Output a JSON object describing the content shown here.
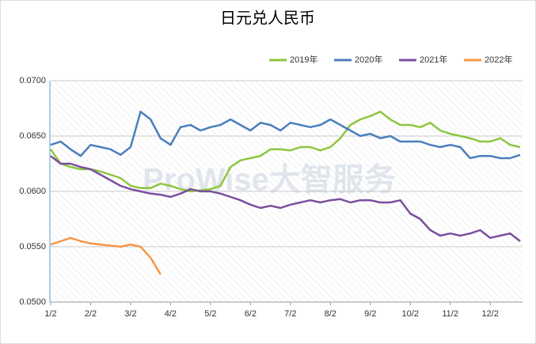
{
  "chart_data": {
    "type": "line",
    "title": "日元兑人民币",
    "watermark": "ProWise大智服务",
    "categories": [
      "1/2",
      null,
      null,
      null,
      "2/2",
      null,
      null,
      null,
      "3/2",
      null,
      null,
      null,
      "4/2",
      null,
      null,
      null,
      "5/2",
      null,
      null,
      null,
      "6/2",
      null,
      null,
      null,
      "7/2",
      null,
      null,
      null,
      "8/2",
      null,
      null,
      null,
      "9/2",
      null,
      null,
      null,
      "10/2",
      null,
      null,
      null,
      "11/2",
      null,
      null,
      null,
      "12/2",
      null,
      null,
      null
    ],
    "series": [
      {
        "name": "2019年",
        "color": "#8dc63f",
        "values": [
          0.0638,
          0.0625,
          0.0622,
          0.062,
          0.062,
          0.0618,
          0.0615,
          0.0612,
          0.0605,
          0.0603,
          0.0603,
          0.0607,
          0.0605,
          0.0602,
          0.06,
          0.0601,
          0.0602,
          0.0605,
          0.0622,
          0.0628,
          0.063,
          0.0632,
          0.0638,
          0.0638,
          0.0637,
          0.064,
          0.064,
          0.0637,
          0.064,
          0.0648,
          0.066,
          0.0665,
          0.0668,
          0.0672,
          0.0665,
          0.066,
          0.066,
          0.0658,
          0.0662,
          0.0655,
          0.0652,
          0.065,
          0.0648,
          0.0645,
          0.0645,
          0.0648,
          0.0642,
          0.064
        ]
      },
      {
        "name": "2020年",
        "color": "#4a7ebb",
        "values": [
          0.0642,
          0.0645,
          0.0638,
          0.0632,
          0.0642,
          0.064,
          0.0638,
          0.0633,
          0.064,
          0.0672,
          0.0665,
          0.0648,
          0.0642,
          0.0658,
          0.066,
          0.0655,
          0.0658,
          0.066,
          0.0665,
          0.066,
          0.0655,
          0.0662,
          0.066,
          0.0655,
          0.0662,
          0.066,
          0.0658,
          0.066,
          0.0665,
          0.066,
          0.0655,
          0.065,
          0.0652,
          0.0648,
          0.065,
          0.0645,
          0.0645,
          0.0645,
          0.0642,
          0.064,
          0.0642,
          0.064,
          0.063,
          0.0632,
          0.0632,
          0.063,
          0.063,
          0.0633
        ]
      },
      {
        "name": "2021年",
        "color": "#7a4f9e",
        "values": [
          0.0632,
          0.0625,
          0.0625,
          0.0622,
          0.062,
          0.0615,
          0.061,
          0.0605,
          0.0602,
          0.06,
          0.0598,
          0.0597,
          0.0595,
          0.0598,
          0.0602,
          0.06,
          0.06,
          0.0598,
          0.0595,
          0.0592,
          0.0588,
          0.0585,
          0.0587,
          0.0585,
          0.0588,
          0.059,
          0.0592,
          0.059,
          0.0592,
          0.0593,
          0.059,
          0.0592,
          0.0592,
          0.059,
          0.059,
          0.0592,
          0.058,
          0.0575,
          0.0565,
          0.056,
          0.0562,
          0.056,
          0.0562,
          0.0565,
          0.0558,
          0.056,
          0.0562,
          0.0555
        ]
      },
      {
        "name": "2022年",
        "color": "#f79646",
        "values": [
          0.0552,
          0.0555,
          0.0558,
          0.0555,
          0.0553,
          0.0552,
          0.0551,
          0.055,
          0.0552,
          0.055,
          0.054,
          0.0525,
          null,
          null,
          null,
          null,
          null,
          null,
          null,
          null,
          null,
          null,
          null,
          null,
          null,
          null,
          null,
          null,
          null,
          null,
          null,
          null,
          null,
          null,
          null,
          null,
          null,
          null,
          null,
          null,
          null,
          null,
          null,
          null,
          null,
          null,
          null,
          null
        ]
      }
    ],
    "ylim": [
      0.05,
      0.07
    ],
    "yticks": [
      {
        "value": 0.05,
        "label": "0.0500"
      },
      {
        "value": 0.055,
        "label": "0.0550"
      },
      {
        "value": 0.06,
        "label": "0.0600"
      },
      {
        "value": 0.065,
        "label": "0.0650"
      },
      {
        "value": 0.07,
        "label": "0.0700"
      }
    ],
    "grid": true,
    "legend": "top-right"
  }
}
